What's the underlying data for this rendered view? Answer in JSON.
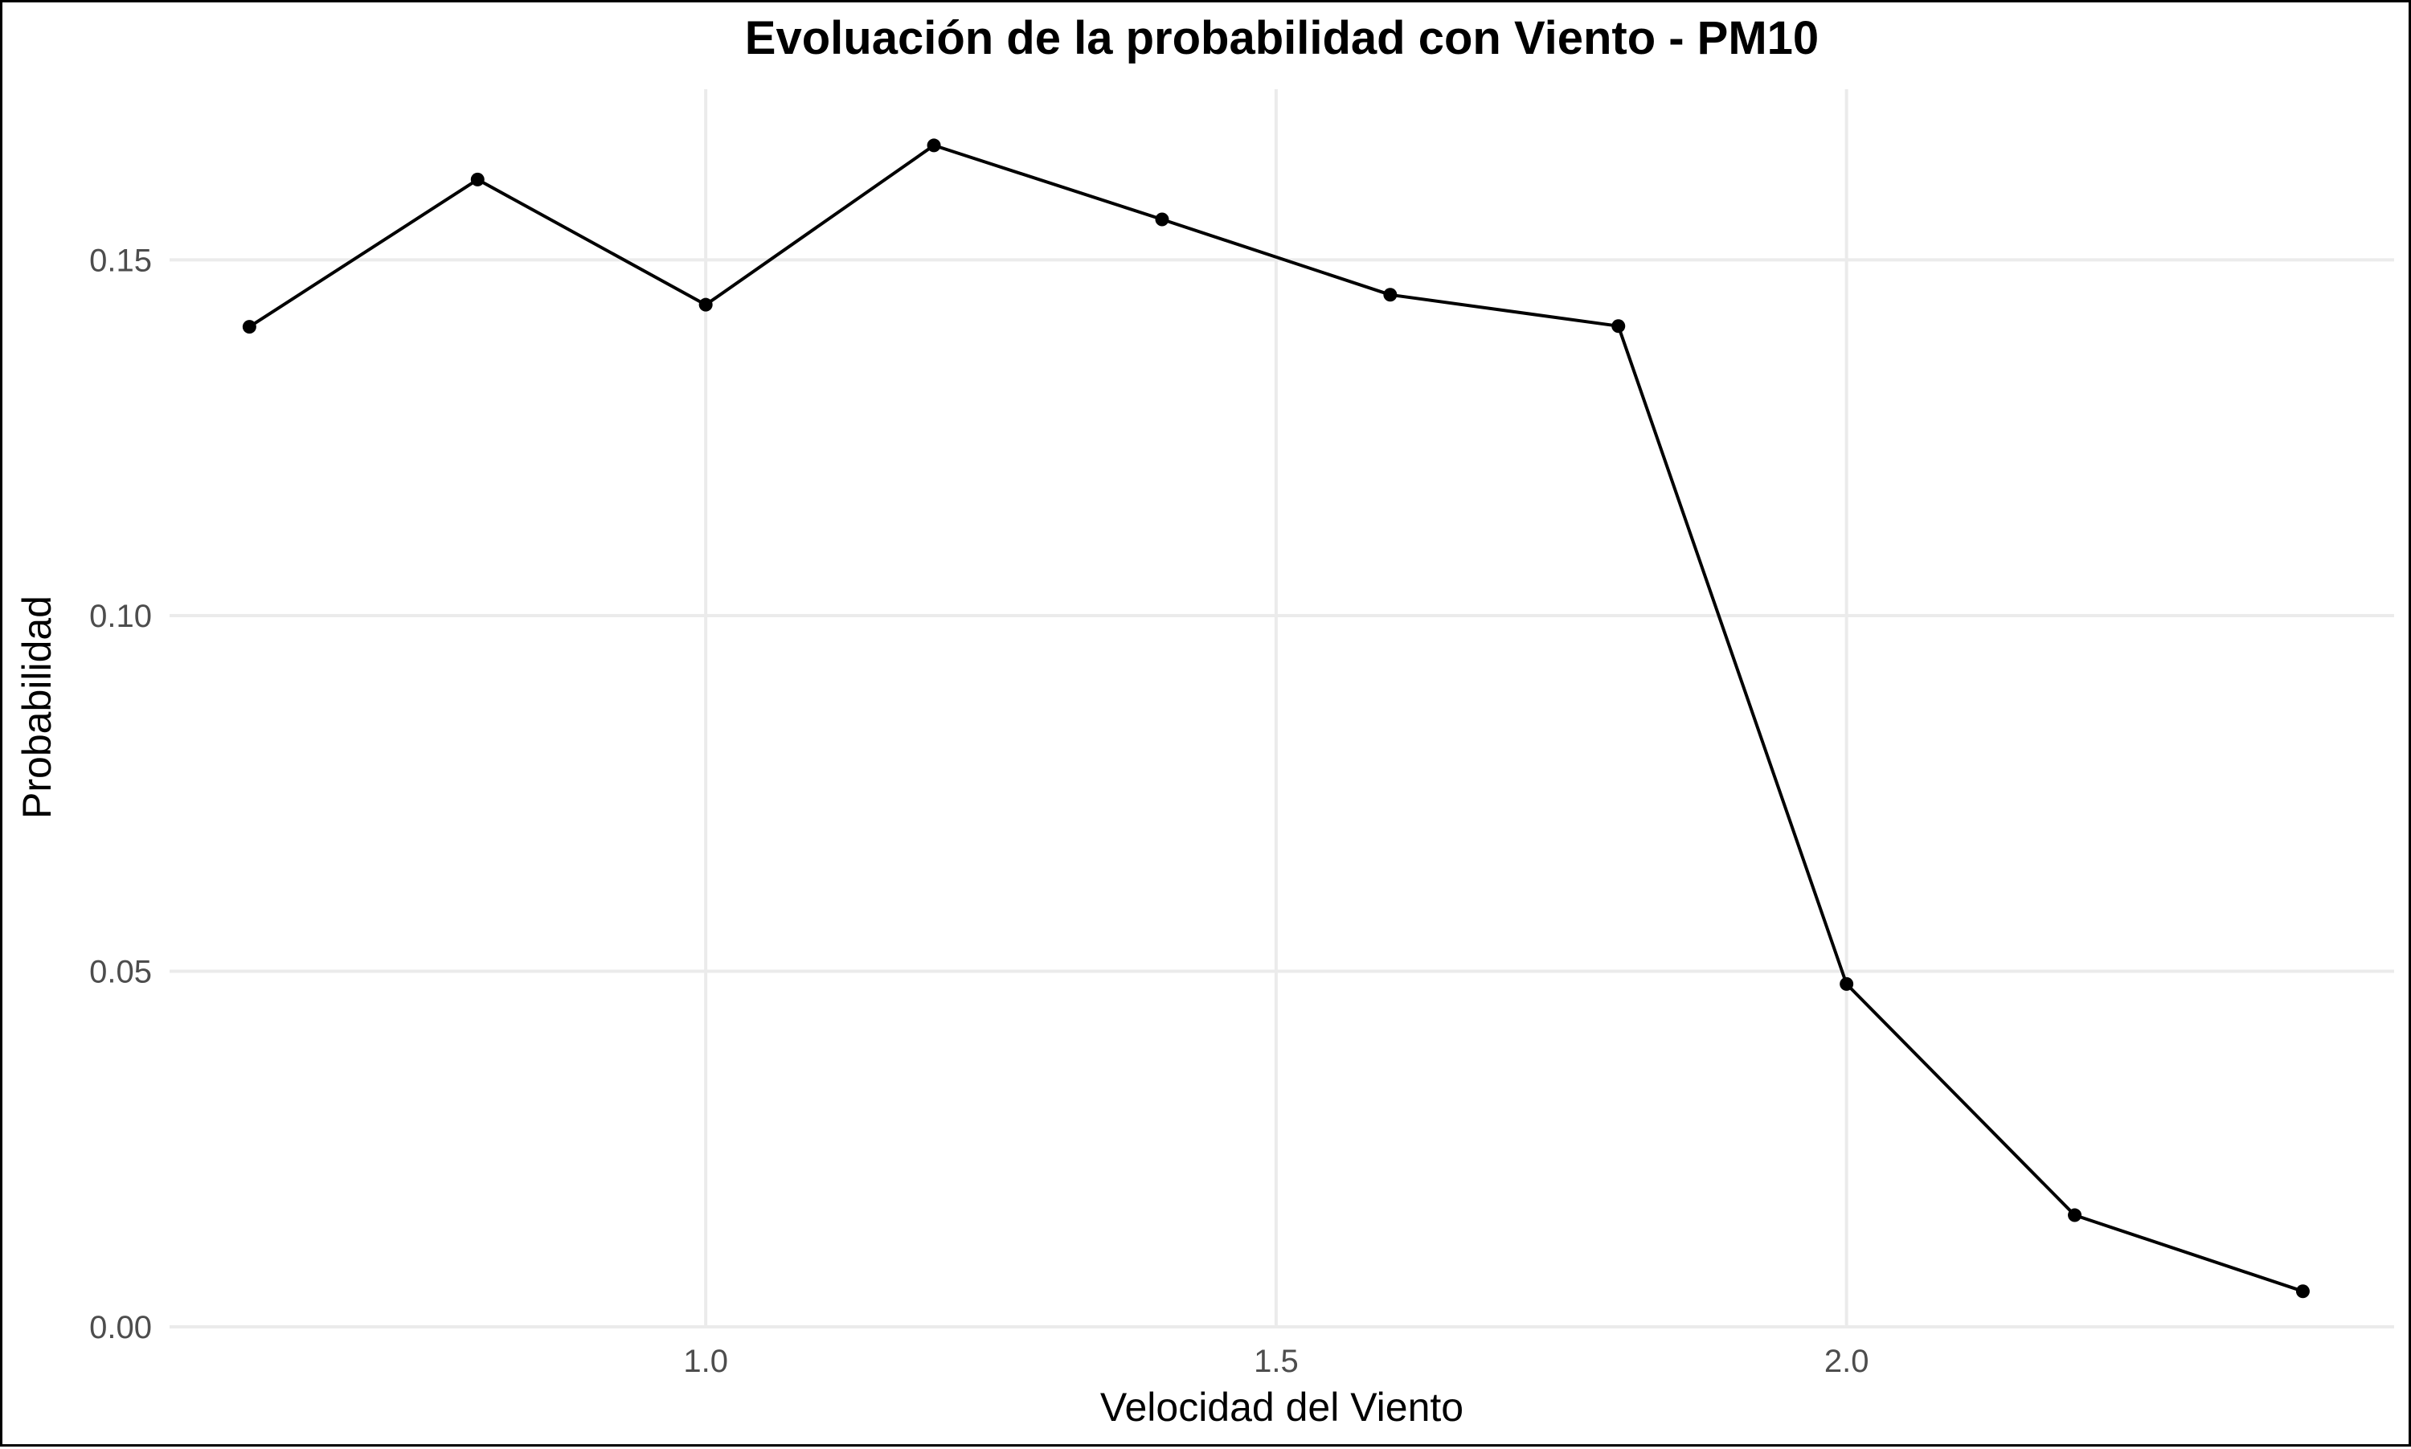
{
  "chart_data": {
    "type": "line",
    "title": "Evoluación de la probabilidad con Viento - PM10",
    "xlabel": "Velocidad del Viento",
    "ylabel": "Probabilidad",
    "xlim": [
      0.53,
      2.48
    ],
    "ylim": [
      0,
      0.174
    ],
    "x_ticks": [
      1.0,
      1.5,
      2.0
    ],
    "x_tick_labels": [
      "1.0",
      "1.5",
      "2.0"
    ],
    "y_ticks": [
      0.0,
      0.05,
      0.1,
      0.15
    ],
    "y_tick_labels": [
      "0.00",
      "0.05",
      "0.10",
      "0.15"
    ],
    "grid": true,
    "x": [
      0.6,
      0.8,
      1.0,
      1.2,
      1.4,
      1.6,
      1.8,
      2.0,
      2.2,
      2.4
    ],
    "series": [
      {
        "values": [
          0.1406,
          0.1613,
          0.1437,
          0.1661,
          0.1557,
          0.1451,
          0.1407,
          0.0482,
          0.0157,
          0.005
        ],
        "color": "#000000"
      }
    ]
  }
}
